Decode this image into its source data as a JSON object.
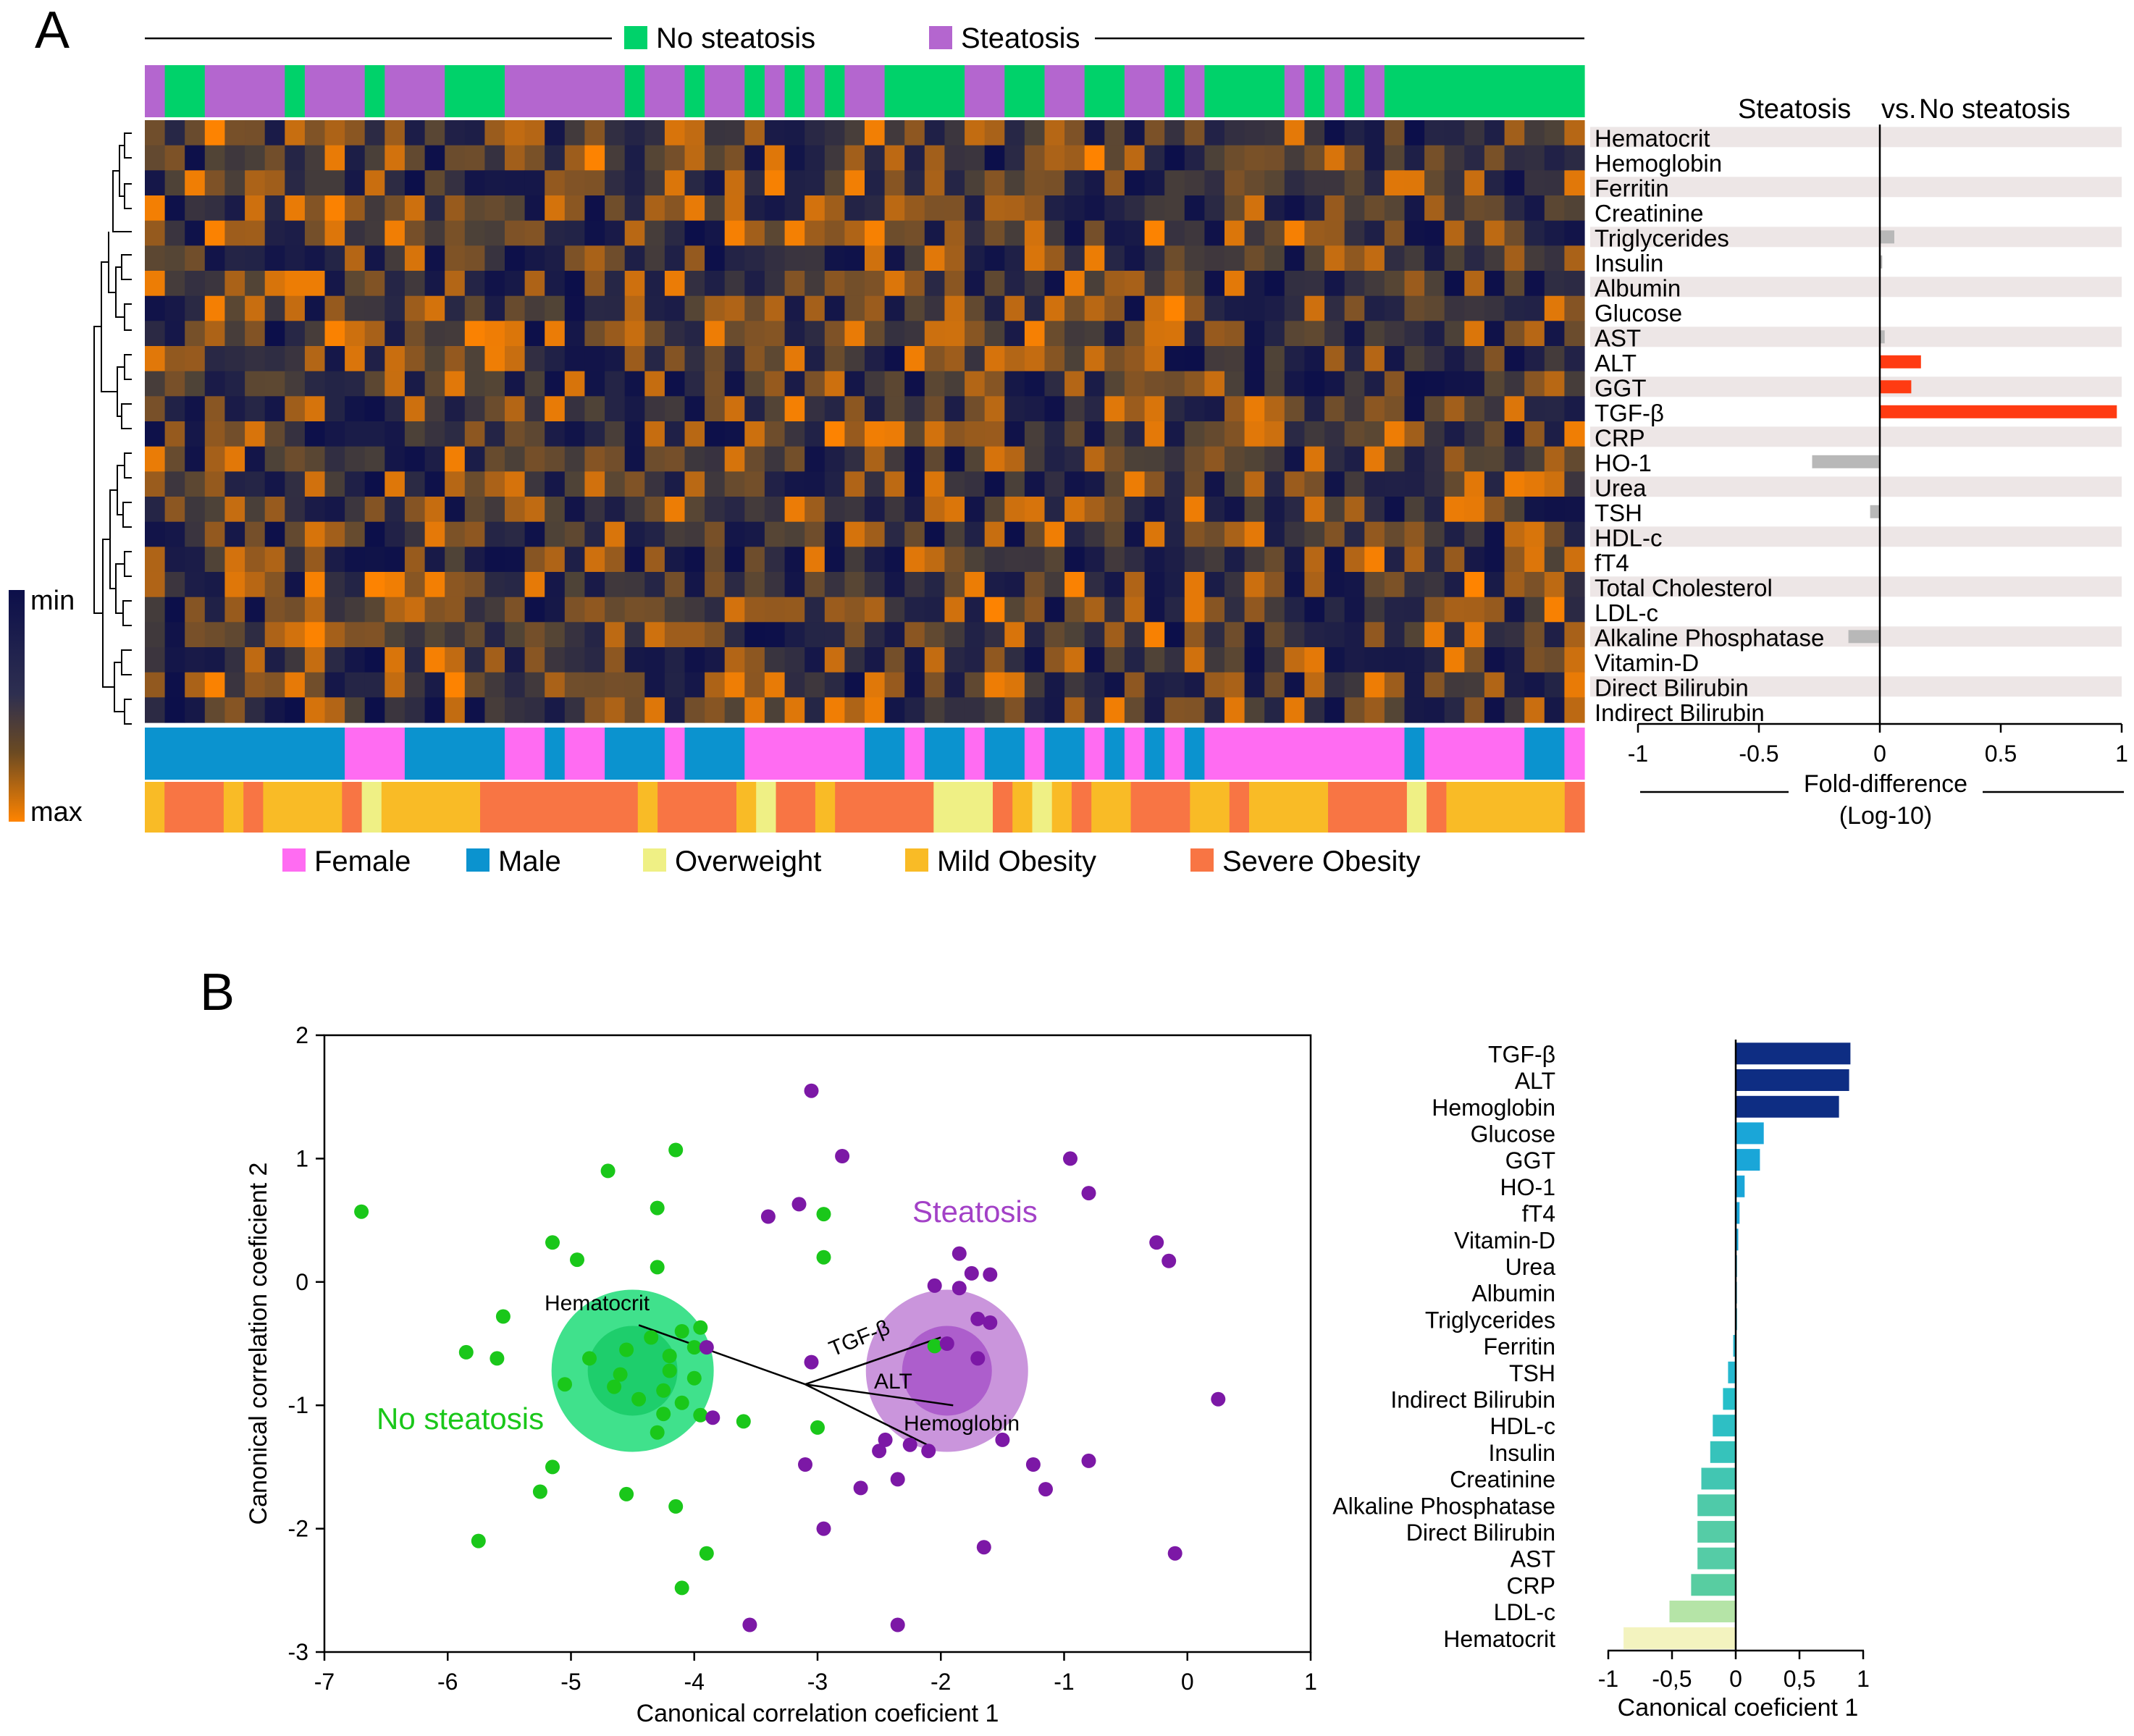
{
  "panels": {
    "a": "A",
    "b": "B"
  },
  "colors": {
    "no_steatosis": "#00d26a",
    "steatosis": "#b466cf",
    "female": "#ff6cf2",
    "male": "#0b93cf",
    "overweight": "#eff085",
    "mild_obesity": "#f9bb26",
    "severe_obesity": "#f87544",
    "scatter_green": "#1ac71a",
    "scatter_purple": "#7c18a6",
    "positive_bar": "#ff3b12",
    "neutral_bar": "#b8b8b8",
    "heat_min": "#0c0f4a",
    "heat_mid": "#4f4337",
    "heat_max": "#ff8400"
  },
  "heatmap": {
    "variables": [
      "Hematocrit",
      "Hemoglobin",
      "Ferritin",
      "Creatinine",
      "Triglycerides",
      "Insulin",
      "Albumin",
      "Glucose",
      "AST",
      "ALT",
      "GGT",
      "TGF-β",
      "CRP",
      "HO-1",
      "Urea",
      "TSH",
      "HDL-c",
      "fT4",
      "Total Cholesterol",
      "LDL-c",
      "Alkaline Phosphatase",
      "Vitamin-D",
      "Direct Bilirubin",
      "Indirect Bilirubin"
    ],
    "group_legend": {
      "no_steatosis": "No steatosis",
      "steatosis": "Steatosis"
    },
    "color_scale": {
      "min_label": "min",
      "max_label": "max"
    },
    "steatosis_segments": [
      [
        1,
        "s"
      ],
      [
        2,
        "n"
      ],
      [
        4,
        "s"
      ],
      [
        1,
        "n"
      ],
      [
        3,
        "s"
      ],
      [
        1,
        "n"
      ],
      [
        3,
        "s"
      ],
      [
        3,
        "n"
      ],
      [
        6,
        "s"
      ],
      [
        1,
        "n"
      ],
      [
        2,
        "s"
      ],
      [
        1,
        "n"
      ],
      [
        2,
        "s"
      ],
      [
        1,
        "n"
      ],
      [
        1,
        "s"
      ],
      [
        1,
        "n"
      ],
      [
        1,
        "s"
      ],
      [
        1,
        "n"
      ],
      [
        2,
        "s"
      ],
      [
        4,
        "n"
      ],
      [
        2,
        "s"
      ],
      [
        2,
        "n"
      ],
      [
        2,
        "s"
      ],
      [
        2,
        "n"
      ],
      [
        2,
        "s"
      ],
      [
        1,
        "n"
      ],
      [
        1,
        "s"
      ],
      [
        4,
        "n"
      ],
      [
        1,
        "s"
      ],
      [
        1,
        "n"
      ],
      [
        1,
        "s"
      ],
      [
        1,
        "n"
      ],
      [
        1,
        "s"
      ],
      [
        10,
        "n"
      ]
    ],
    "sex_segments": [
      [
        10,
        "m"
      ],
      [
        3,
        "f"
      ],
      [
        5,
        "m"
      ],
      [
        2,
        "f"
      ],
      [
        1,
        "m"
      ],
      [
        2,
        "f"
      ],
      [
        3,
        "m"
      ],
      [
        1,
        "f"
      ],
      [
        3,
        "m"
      ],
      [
        6,
        "f"
      ],
      [
        2,
        "m"
      ],
      [
        1,
        "f"
      ],
      [
        2,
        "m"
      ],
      [
        1,
        "f"
      ],
      [
        2,
        "m"
      ],
      [
        1,
        "f"
      ],
      [
        2,
        "m"
      ],
      [
        1,
        "f"
      ],
      [
        1,
        "m"
      ],
      [
        1,
        "f"
      ],
      [
        1,
        "m"
      ],
      [
        1,
        "f"
      ],
      [
        1,
        "m"
      ],
      [
        10,
        "f"
      ],
      [
        1,
        "m"
      ],
      [
        5,
        "f"
      ],
      [
        2,
        "m"
      ],
      [
        1,
        "f"
      ]
    ],
    "bmi_segments": [
      [
        1,
        "mi"
      ],
      [
        3,
        "se"
      ],
      [
        1,
        "mi"
      ],
      [
        1,
        "se"
      ],
      [
        4,
        "mi"
      ],
      [
        1,
        "se"
      ],
      [
        1,
        "ov"
      ],
      [
        5,
        "mi"
      ],
      [
        8,
        "se"
      ],
      [
        1,
        "mi"
      ],
      [
        4,
        "se"
      ],
      [
        1,
        "mi"
      ],
      [
        1,
        "ov"
      ],
      [
        2,
        "se"
      ],
      [
        1,
        "mi"
      ],
      [
        5,
        "se"
      ],
      [
        3,
        "ov"
      ],
      [
        1,
        "se"
      ],
      [
        1,
        "mi"
      ],
      [
        1,
        "ov"
      ],
      [
        1,
        "mi"
      ],
      [
        1,
        "se"
      ],
      [
        2,
        "mi"
      ],
      [
        3,
        "se"
      ],
      [
        2,
        "mi"
      ],
      [
        1,
        "se"
      ],
      [
        4,
        "mi"
      ],
      [
        4,
        "se"
      ],
      [
        1,
        "ov"
      ],
      [
        1,
        "se"
      ],
      [
        6,
        "mi"
      ],
      [
        1,
        "se"
      ]
    ],
    "bottom_legend": {
      "female": "Female",
      "male": "Male",
      "overweight": "Overweight",
      "mild_obesity": "Mild Obesity",
      "severe_obesity": "Severe Obesity"
    }
  },
  "fold_difference": {
    "title_left": "Steatosis",
    "title_vs": "vs.",
    "title_right": "No steatosis",
    "xlabel_line1": "Fold-difference",
    "xlabel_line2": "(Log-10)",
    "xlim": [
      -1,
      1
    ],
    "ticks": [
      "-1",
      "-0.5",
      "0",
      "0.5",
      "1"
    ],
    "values": [
      0.0,
      0.0,
      0.0,
      0.0,
      0.06,
      0.01,
      0.0,
      0.0,
      0.02,
      0.17,
      0.13,
      0.98,
      0.0,
      -0.28,
      0.0,
      -0.04,
      0.0,
      0.0,
      0.0,
      0.0,
      -0.13,
      0.0,
      0.0,
      0.0
    ],
    "significant": [
      "ALT",
      "GGT",
      "TGF-β"
    ]
  },
  "chart_data": [
    {
      "type": "heatmap",
      "title": "",
      "rows": [
        "Hematocrit",
        "Hemoglobin",
        "Ferritin",
        "Creatinine",
        "Triglycerides",
        "Insulin",
        "Albumin",
        "Glucose",
        "AST",
        "ALT",
        "GGT",
        "TGF-β",
        "CRP",
        "HO-1",
        "Urea",
        "TSH",
        "HDL-c",
        "fT4",
        "Total Cholesterol",
        "LDL-c",
        "Alkaline Phosphatase",
        "Vitamin-D",
        "Direct Bilirubin",
        "Indirect Bilirubin"
      ],
      "n_columns": 72,
      "values": "per-patient normalized levels (min to max); individual cells not legible"
    },
    {
      "type": "bar",
      "orientation": "horizontal",
      "title": "Steatosis vs. No steatosis",
      "categories": [
        "Hematocrit",
        "Hemoglobin",
        "Ferritin",
        "Creatinine",
        "Triglycerides",
        "Insulin",
        "Albumin",
        "Glucose",
        "AST",
        "ALT",
        "GGT",
        "TGF-β",
        "CRP",
        "HO-1",
        "Urea",
        "TSH",
        "HDL-c",
        "fT4",
        "Total Cholesterol",
        "LDL-c",
        "Alkaline Phosphatase",
        "Vitamin-D",
        "Direct Bilirubin",
        "Indirect Bilirubin"
      ],
      "values": [
        0.0,
        0.0,
        0.0,
        0.0,
        0.06,
        0.01,
        0.0,
        0.0,
        0.02,
        0.17,
        0.13,
        0.98,
        0.0,
        -0.28,
        0.0,
        -0.04,
        0.0,
        0.0,
        0.0,
        0.0,
        -0.13,
        0.0,
        0.0,
        0.0
      ],
      "xlabel": "Fold-difference (Log-10)",
      "xlim": [
        -1,
        1
      ]
    },
    {
      "type": "scatter",
      "title": "",
      "xlabel": "Canonical correlation coeficient 1",
      "ylabel": "Canonical correlation coeficient 2",
      "xlim": [
        -7,
        1
      ],
      "ylim": [
        -3,
        2
      ],
      "xticks": [
        "-7",
        "-6",
        "-5",
        "-4",
        "-3",
        "-2",
        "-1",
        "0",
        "1"
      ],
      "yticks": [
        "2",
        "1",
        "0",
        "-1",
        "-2",
        "-3"
      ],
      "series": [
        {
          "name": "No steatosis",
          "label": "No steatosis",
          "centroid": [
            -4.5,
            -0.72
          ],
          "points": [
            [
              -6.7,
              0.57
            ],
            [
              -4.7,
              0.9
            ],
            [
              -4.15,
              1.07
            ],
            [
              -4.3,
              0.6
            ],
            [
              -5.15,
              0.32
            ],
            [
              -4.95,
              0.18
            ],
            [
              -4.3,
              0.12
            ],
            [
              -5.55,
              -0.28
            ],
            [
              -5.85,
              -0.57
            ],
            [
              -5.6,
              -0.62
            ],
            [
              -5.05,
              -0.83
            ],
            [
              -4.35,
              -0.45
            ],
            [
              -4.55,
              -0.55
            ],
            [
              -4.85,
              -0.62
            ],
            [
              -4.2,
              -0.6
            ],
            [
              -3.95,
              -0.37
            ],
            [
              -4.1,
              -0.4
            ],
            [
              -4.0,
              -0.53
            ],
            [
              -4.6,
              -0.75
            ],
            [
              -4.2,
              -0.72
            ],
            [
              -4.0,
              -0.78
            ],
            [
              -4.65,
              -0.85
            ],
            [
              -4.25,
              -0.88
            ],
            [
              -4.45,
              -0.95
            ],
            [
              -4.1,
              -0.98
            ],
            [
              -3.95,
              -1.08
            ],
            [
              -4.25,
              -1.07
            ],
            [
              -4.3,
              -1.22
            ],
            [
              -3.6,
              -1.13
            ],
            [
              -3.0,
              -1.18
            ],
            [
              -5.15,
              -1.5
            ],
            [
              -5.25,
              -1.7
            ],
            [
              -4.55,
              -1.72
            ],
            [
              -4.15,
              -1.82
            ],
            [
              -5.75,
              -2.1
            ],
            [
              -3.9,
              -2.2
            ],
            [
              -4.1,
              -2.48
            ],
            [
              -2.95,
              0.55
            ],
            [
              -2.95,
              0.2
            ],
            [
              -2.05,
              -0.52
            ]
          ]
        },
        {
          "name": "Steatosis",
          "label": "Steatosis",
          "centroid": [
            -1.95,
            -0.72
          ],
          "points": [
            [
              -3.05,
              1.55
            ],
            [
              -2.8,
              1.02
            ],
            [
              -3.4,
              0.53
            ],
            [
              -3.15,
              0.63
            ],
            [
              -0.95,
              1.0
            ],
            [
              -0.8,
              0.72
            ],
            [
              -0.25,
              0.32
            ],
            [
              -0.15,
              0.17
            ],
            [
              -1.85,
              0.23
            ],
            [
              -1.75,
              0.07
            ],
            [
              -1.6,
              0.06
            ],
            [
              -2.05,
              -0.03
            ],
            [
              -1.85,
              -0.05
            ],
            [
              -1.7,
              -0.3
            ],
            [
              -1.6,
              -0.33
            ],
            [
              -3.05,
              -0.65
            ],
            [
              -1.95,
              -0.5
            ],
            [
              -1.7,
              -0.62
            ],
            [
              -3.9,
              -0.53
            ],
            [
              -3.85,
              -1.1
            ],
            [
              -2.45,
              -1.28
            ],
            [
              -2.5,
              -1.37
            ],
            [
              -2.25,
              -1.32
            ],
            [
              -2.1,
              -1.37
            ],
            [
              -1.5,
              -1.28
            ],
            [
              -0.8,
              -1.45
            ],
            [
              -3.1,
              -1.48
            ],
            [
              -2.35,
              -1.6
            ],
            [
              -2.65,
              -1.67
            ],
            [
              -1.25,
              -1.48
            ],
            [
              -1.15,
              -1.68
            ],
            [
              0.25,
              -0.95
            ],
            [
              -2.95,
              -2.0
            ],
            [
              -1.65,
              -2.15
            ],
            [
              -0.1,
              -2.2
            ],
            [
              -3.55,
              -2.78
            ],
            [
              -2.35,
              -2.78
            ]
          ]
        }
      ],
      "vectors": [
        {
          "label": "Hematocrit",
          "from": [
            -3.1,
            -0.83
          ],
          "to": [
            -4.45,
            -0.35
          ]
        },
        {
          "label": "TGF-β",
          "from": [
            -3.1,
            -0.83
          ],
          "to": [
            -2.0,
            -0.45
          ]
        },
        {
          "label": "ALT",
          "from": [
            -3.1,
            -0.83
          ],
          "to": [
            -1.9,
            -1.0
          ]
        },
        {
          "label": "Hemoglobin",
          "from": [
            -3.1,
            -0.83
          ],
          "to": [
            -2.05,
            -1.35
          ]
        }
      ]
    },
    {
      "type": "bar",
      "orientation": "horizontal",
      "title": "",
      "categories": [
        "TGF-β",
        "ALT",
        "Hemoglobin",
        "Glucose",
        "GGT",
        "HO-1",
        "fT4",
        "Vitamin-D",
        "Urea",
        "Albumin",
        "Triglycerides",
        "Ferritin",
        "TSH",
        "Indirect Bilirubin",
        "HDL-c",
        "Insulin",
        "Creatinine",
        "Alkaline Phosphatase",
        "Direct Bilirubin",
        "AST",
        "CRP",
        "LDL-c",
        "Hematocrit"
      ],
      "values": [
        0.9,
        0.89,
        0.81,
        0.22,
        0.19,
        0.07,
        0.03,
        0.02,
        0.005,
        0.005,
        0.01,
        -0.02,
        -0.06,
        -0.1,
        -0.18,
        -0.2,
        -0.27,
        -0.3,
        -0.3,
        -0.3,
        -0.35,
        -0.52,
        -0.88
      ],
      "xlabel": "Canonical coeficient 1",
      "xlim": [
        -1,
        1
      ],
      "xticks": [
        "-1",
        "-0,5",
        "0",
        "0,5",
        "1"
      ]
    }
  ]
}
